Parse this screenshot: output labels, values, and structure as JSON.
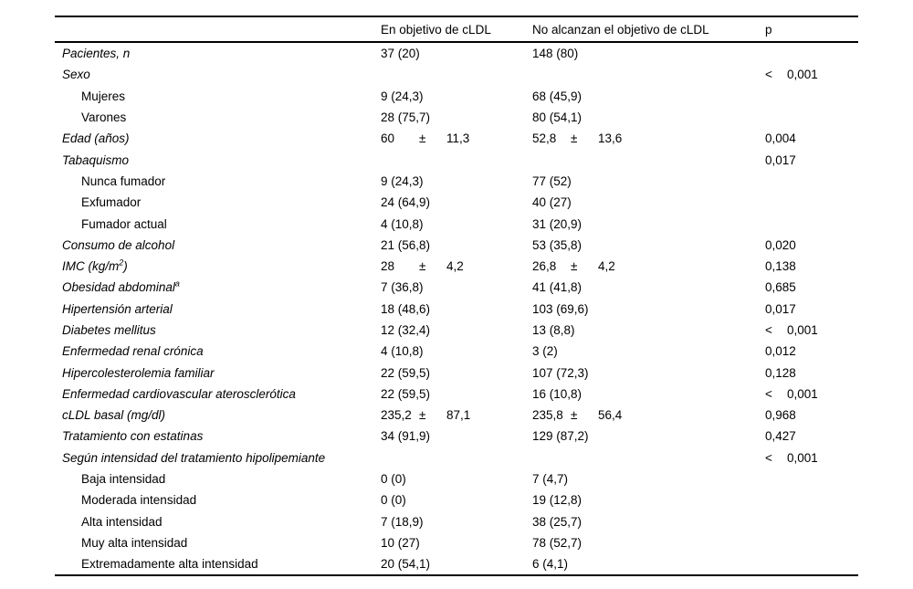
{
  "header": {
    "col_label": "",
    "col_objective": "En objetivo de cLDL",
    "col_no_objective": "No alcanzan el objetivo de cLDL",
    "col_p": "p"
  },
  "rows": [
    {
      "label": "Pacientes, n",
      "italic": true,
      "c1": "37 (20)",
      "c2": "148 (80)",
      "p": ""
    },
    {
      "label": "Sexo",
      "italic": true,
      "c1": "",
      "c2": "",
      "p": [
        "<",
        "0,001"
      ]
    },
    {
      "label": "Mujeres",
      "indent": true,
      "c1": "9 (24,3)",
      "c2": "68 (45,9)",
      "p": ""
    },
    {
      "label": "Varones",
      "indent": true,
      "c1": "28 (75,7)",
      "c2": "80 (54,1)",
      "p": ""
    },
    {
      "label": "Edad (años)",
      "italic": true,
      "c1": [
        "60",
        "±",
        "11,3"
      ],
      "c2": [
        "52,8",
        "±",
        "13,6"
      ],
      "p": "0,004"
    },
    {
      "label": "Tabaquismo",
      "italic": true,
      "c1": "",
      "c2": "",
      "p": "0,017"
    },
    {
      "label": "Nunca fumador",
      "indent": true,
      "c1": "9 (24,3)",
      "c2": "77 (52)",
      "p": ""
    },
    {
      "label": "Exfumador",
      "indent": true,
      "c1": "24 (64,9)",
      "c2": "40 (27)",
      "p": ""
    },
    {
      "label": "Fumador actual",
      "indent": true,
      "c1": "4 (10,8)",
      "c2": "31 (20,9)",
      "p": ""
    },
    {
      "label": "Consumo de alcohol",
      "italic": true,
      "c1": "21 (56,8)",
      "c2": "53 (35,8)",
      "p": "0,020"
    },
    {
      "label_parts": [
        {
          "t": "IMC (kg/m"
        },
        {
          "t": "2",
          "sup": true
        },
        {
          "t": ")"
        }
      ],
      "italic": true,
      "c1": [
        "28",
        "±",
        "4,2"
      ],
      "c2": [
        "26,8",
        "±",
        "4,2"
      ],
      "p": "0,138"
    },
    {
      "label_parts": [
        {
          "t": "Obesidad abdominal"
        },
        {
          "t": "a",
          "sup": true
        }
      ],
      "italic": true,
      "c1": "7 (36,8)",
      "c2": "41 (41,8)",
      "p": "0,685"
    },
    {
      "label": "Hipertensión arterial",
      "italic": true,
      "c1": "18 (48,6)",
      "c2": "103 (69,6)",
      "p": "0,017"
    },
    {
      "label": "Diabetes mellitus",
      "italic": true,
      "c1": "12 (32,4)",
      "c2": "13 (8,8)",
      "p": [
        "<",
        "0,001"
      ]
    },
    {
      "label": "Enfermedad renal crónica",
      "italic": true,
      "c1": "4 (10,8)",
      "c2": "3 (2)",
      "p": "0,012"
    },
    {
      "label": "Hipercolesterolemia familiar",
      "italic": true,
      "c1": "22 (59,5)",
      "c2": "107 (72,3)",
      "p": "0,128"
    },
    {
      "label": "Enfermedad cardiovascular aterosclerótica",
      "italic": true,
      "c1": "22 (59,5)",
      "c2": "16 (10,8)",
      "p": [
        "<",
        "0,001"
      ]
    },
    {
      "label": "cLDL basal (mg/dl)",
      "italic": true,
      "c1": [
        "235,2",
        "±",
        "87,1"
      ],
      "c2": [
        "235,8",
        "±",
        "56,4"
      ],
      "p": "0,968"
    },
    {
      "label": "Tratamiento con estatinas",
      "italic": true,
      "c1": "34 (91,9)",
      "c2": "129 (87,2)",
      "p": "0,427"
    },
    {
      "label": "Según intensidad del tratamiento hipolipemiante",
      "italic": true,
      "c1": "",
      "c2": "",
      "p": [
        "<",
        "0,001"
      ]
    },
    {
      "label": "Baja intensidad",
      "indent": true,
      "c1": "0 (0)",
      "c2": "7 (4,7)",
      "p": ""
    },
    {
      "label": "Moderada intensidad",
      "indent": true,
      "c1": "0 (0)",
      "c2": "19 (12,8)",
      "p": ""
    },
    {
      "label": "Alta intensidad",
      "indent": true,
      "c1": "7 (18,9)",
      "c2": "38 (25,7)",
      "p": ""
    },
    {
      "label": "Muy alta intensidad",
      "indent": true,
      "c1": "10 (27)",
      "c2": "78 (52,7)",
      "p": ""
    },
    {
      "label": "Extremadamente alta intensidad",
      "indent": true,
      "c1": "20 (54,1)",
      "c2": "6 (4,1)",
      "p": ""
    }
  ]
}
